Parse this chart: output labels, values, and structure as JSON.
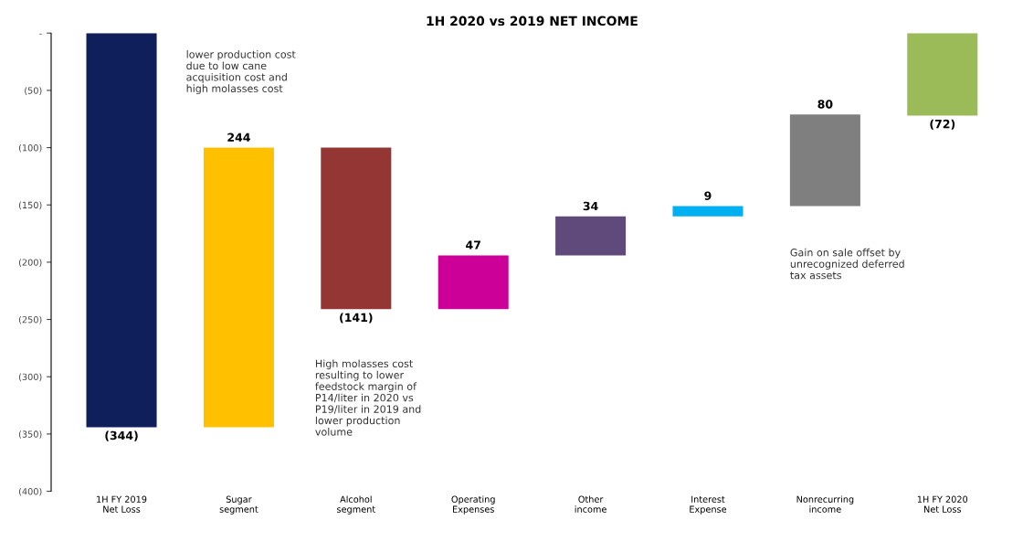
{
  "chart_data": {
    "type": "bar",
    "title": "1H 2020 vs 2019 NET INCOME",
    "categories": [
      "1H FY 2019\nNet Loss",
      "Sugar\nsegment",
      "Alcohol\nsegment",
      "Operating\nExpenses",
      "Other\nincome",
      "Interest\nExpense",
      "Nonrecurring\nincome",
      "1H FY 2020\nNet Loss"
    ],
    "values": [
      -344,
      244,
      -141,
      47,
      34,
      9,
      80,
      -72
    ],
    "base": [
      0,
      -344,
      -100,
      -241,
      -194,
      -160,
      -151,
      0
    ],
    "colors": [
      "#0f1f5c",
      "#ffc000",
      "#943634",
      "#cc0099",
      "#604a7b",
      "#00b0f0",
      "#7f7f7f",
      "#9bbb59"
    ],
    "value_labels": [
      "(344)",
      "244",
      "(141)",
      "47",
      "34",
      "9",
      "80",
      "(72)"
    ],
    "ylim": [
      -400,
      0
    ],
    "yticks": [
      {
        "value": 0,
        "label": "-"
      },
      {
        "value": -50,
        "label": "(50)"
      },
      {
        "value": -100,
        "label": "(100)"
      },
      {
        "value": -150,
        "label": "(150)"
      },
      {
        "value": -200,
        "label": "(200)"
      },
      {
        "value": -250,
        "label": "(250)"
      },
      {
        "value": -300,
        "label": "(300)"
      },
      {
        "value": -350,
        "label": "(350)"
      },
      {
        "value": -400,
        "label": "(400)"
      }
    ],
    "grid": false,
    "legend": false,
    "annotations": [
      "lower production cost due to low cane acquisition cost and high molasses cost",
      "High molasses cost resulting to lower feedstock margin of P14/liter in 2020 vs P19/liter in 2019 and lower production volume",
      "Gain on sale offset by unrecognized deferred tax assets"
    ]
  }
}
